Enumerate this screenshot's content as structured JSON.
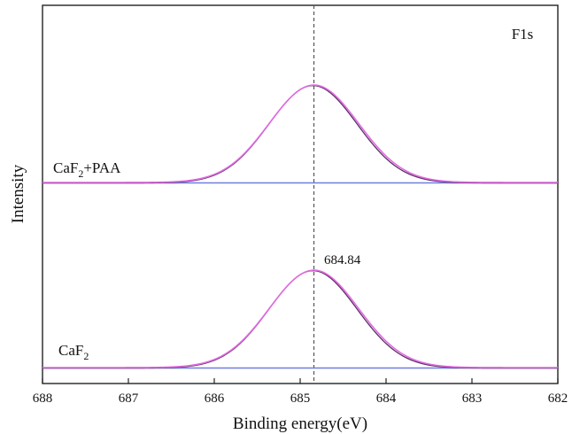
{
  "chart_data": {
    "type": "line",
    "xlabel": "Binding energy(eV)",
    "ylabel": "Intensity",
    "xlim": [
      688,
      682
    ],
    "x_reversed": true,
    "xticks": [
      688,
      687,
      686,
      685,
      684,
      683,
      682
    ],
    "corner_label": "F1s",
    "reference_line": {
      "x": 684.84,
      "style": "dashed"
    },
    "peak_label": "684.84",
    "colors": {
      "fit": "#e06be0",
      "raw": "#5a2e66",
      "baseline": "#6f7fe0",
      "dashed": "#555555",
      "axis": "#222222"
    },
    "series": [
      {
        "label_main": "CaF",
        "label_sub": "2",
        "label_suffix": "+PAA",
        "center": 684.84,
        "sigma": 0.52,
        "baseline_level": 0.0,
        "peak_height": 1.0
      },
      {
        "label_main": "CaF",
        "label_sub": "2",
        "label_suffix": "",
        "center": 684.84,
        "sigma": 0.52,
        "baseline_level": 0.0,
        "peak_height": 1.0
      }
    ]
  }
}
